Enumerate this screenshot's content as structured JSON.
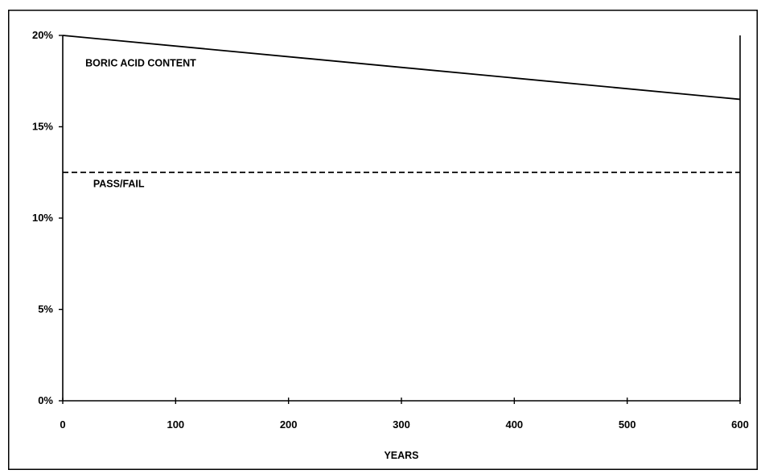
{
  "chart_data": {
    "type": "line",
    "title": "",
    "xlabel": "YEARS",
    "ylabel": "",
    "xlim": [
      0,
      600
    ],
    "ylim": [
      0,
      20
    ],
    "x_ticks": [
      0,
      100,
      200,
      300,
      400,
      500,
      600
    ],
    "x_tick_labels": [
      "0",
      "100",
      "200",
      "300",
      "400",
      "500",
      "600"
    ],
    "y_ticks": [
      0,
      5,
      10,
      15,
      20
    ],
    "y_tick_labels": [
      "0%",
      "5%",
      "10%",
      "15%",
      "20%"
    ],
    "grid": false,
    "legend": "none",
    "series": [
      {
        "name": "BORIC ACID CONTENT",
        "style": "solid",
        "color": "#000000",
        "x": [
          0,
          600
        ],
        "y": [
          20,
          16.5
        ]
      },
      {
        "name": "PASS/FAIL",
        "style": "dashed",
        "color": "#000000",
        "x": [
          0,
          600
        ],
        "y": [
          12.5,
          12.5
        ]
      }
    ]
  }
}
